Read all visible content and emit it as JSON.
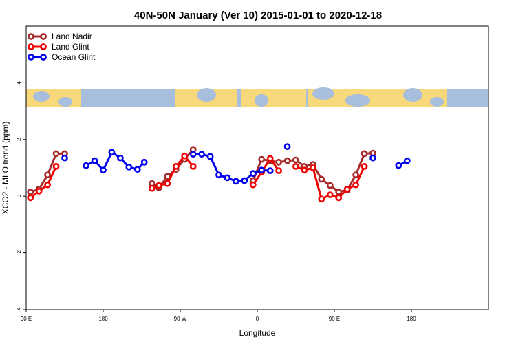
{
  "chart_data": {
    "type": "line",
    "title": "40N-50N January (Ver 10)   2015-01-01 to 2020-12-18",
    "xlabel": "Longitude",
    "ylabel": "XCO2 - MLO trend (ppm)",
    "xlim": [
      90,
      630
    ],
    "ylim": [
      -4,
      6
    ],
    "x_ticks": [
      {
        "value": 90,
        "label": "90 E"
      },
      {
        "value": 180,
        "label": "180"
      },
      {
        "value": 270,
        "label": "90 W"
      },
      {
        "value": 360,
        "label": "0"
      },
      {
        "value": 450,
        "label": "90 E"
      },
      {
        "value": 540,
        "label": "180"
      }
    ],
    "y_ticks": [
      {
        "value": -4,
        "label": "-4"
      },
      {
        "value": -2,
        "label": "-2"
      },
      {
        "value": 0,
        "label": "0"
      },
      {
        "value": 2,
        "label": "2"
      },
      {
        "value": 4,
        "label": "4"
      }
    ],
    "legend_position": "top-left",
    "map_strip": "world map strip drawn above data region (y approx 3.1 to 3.7)",
    "colors": {
      "land_nadir": "#a52a2a",
      "land_glint": "#ee0000",
      "ocean_glint": "#0000ee",
      "ocean": "#a7bedc",
      "land": "#f7d87a"
    },
    "series": [
      {
        "name": "Land Nadir",
        "color": "#a52a2a",
        "segments": [
          [
            [
              95,
              0.15
            ],
            [
              105,
              0.25
            ],
            [
              115,
              0.75
            ],
            [
              125,
              1.5
            ],
            [
              135,
              1.5
            ]
          ],
          [
            [
              237,
              0.45
            ],
            [
              245,
              0.3
            ],
            [
              255,
              0.7
            ],
            [
              265,
              0.95
            ],
            [
              275,
              1.3
            ],
            [
              285,
              1.65
            ]
          ],
          [
            [
              355,
              0.55
            ],
            [
              365,
              1.3
            ],
            [
              375,
              1.25
            ],
            [
              385,
              1.2
            ],
            [
              395,
              1.25
            ],
            [
              405,
              1.28
            ],
            [
              415,
              1.05
            ],
            [
              425,
              1.12
            ],
            [
              435,
              0.6
            ],
            [
              445,
              0.38
            ],
            [
              455,
              0.15
            ],
            [
              465,
              0.22
            ],
            [
              475,
              0.75
            ],
            [
              485,
              1.5
            ],
            [
              495,
              1.52
            ]
          ]
        ]
      },
      {
        "name": "Land Glint",
        "color": "#ee0000",
        "segments": [
          [
            [
              95,
              -0.05
            ],
            [
              105,
              0.18
            ],
            [
              115,
              0.4
            ],
            [
              125,
              1.05
            ]
          ],
          [
            [
              237,
              0.28
            ],
            [
              245,
              0.38
            ],
            [
              255,
              0.45
            ],
            [
              265,
              1.05
            ],
            [
              275,
              1.42
            ],
            [
              285,
              1.05
            ]
          ],
          [
            [
              355,
              0.4
            ],
            [
              365,
              0.85
            ],
            [
              375,
              1.33
            ],
            [
              385,
              0.9
            ]
          ],
          [
            [
              405,
              1.05
            ],
            [
              415,
              0.92
            ],
            [
              425,
              1.0
            ],
            [
              435,
              -0.1
            ],
            [
              445,
              0.05
            ],
            [
              455,
              -0.05
            ],
            [
              465,
              0.25
            ],
            [
              475,
              0.4
            ],
            [
              485,
              1.05
            ]
          ]
        ]
      },
      {
        "name": "Ocean Glint",
        "color": "#0000ee",
        "segments": [
          [
            [
              135,
              1.35
            ]
          ],
          [
            [
              160,
              1.08
            ],
            [
              170,
              1.25
            ],
            [
              180,
              0.92
            ],
            [
              190,
              1.55
            ],
            [
              200,
              1.35
            ],
            [
              210,
              1.03
            ],
            [
              220,
              0.95
            ],
            [
              228,
              1.2
            ]
          ],
          [
            [
              285,
              1.48
            ],
            [
              295,
              1.48
            ],
            [
              305,
              1.4
            ],
            [
              315,
              0.75
            ],
            [
              325,
              0.65
            ],
            [
              335,
              0.53
            ],
            [
              345,
              0.55
            ],
            [
              355,
              0.8
            ],
            [
              365,
              0.92
            ],
            [
              375,
              0.9
            ]
          ],
          [
            [
              395,
              1.75
            ]
          ],
          [
            [
              495,
              1.35
            ]
          ],
          [
            [
              525,
              1.08
            ],
            [
              535,
              1.25
            ]
          ]
        ]
      }
    ]
  }
}
